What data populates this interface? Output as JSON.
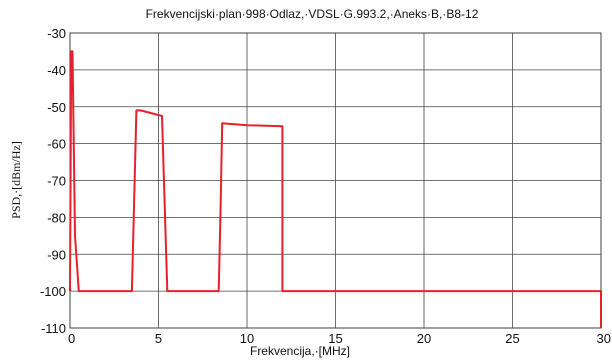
{
  "chart_data": {
    "type": "line",
    "title": "Frekvencijski·plan·998·Odlaz,·VDSL·G.993.2,·Aneks·B,·B8-12",
    "xlabel": "Frekvencija,·[MHz]",
    "ylabel": "PSD,·[dBm/Hz]",
    "xlim": [
      0,
      30
    ],
    "ylim": [
      -110,
      -30
    ],
    "x_ticks": [
      0,
      5,
      10,
      15,
      20,
      25,
      30
    ],
    "x_tick_labels": [
      "0",
      "5",
      "10",
      "15",
      "20",
      "25",
      "30"
    ],
    "y_ticks": [
      -30,
      -40,
      -50,
      -60,
      -70,
      -80,
      -90,
      -100,
      -110
    ],
    "y_tick_labels": [
      "-30",
      "-40",
      "-50",
      "-60",
      "-70",
      "-80",
      "-90",
      "-100",
      "-110"
    ],
    "grid": true,
    "series": [
      {
        "color": "#e8202a",
        "x": [
          0,
          0.07,
          0.14,
          0.28,
          0.5,
          0.55,
          3.5,
          3.75,
          4.0,
          5.2,
          5.5,
          8.4,
          8.5,
          8.6,
          10.0,
          12.0,
          12.0,
          30.0,
          30.0
        ],
        "y": [
          -100,
          -35,
          -35,
          -85,
          -100,
          -100,
          -100,
          -51,
          -51,
          -52.5,
          -100,
          -100,
          -80,
          -54.5,
          -55,
          -55.3,
          -100,
          -100,
          -110
        ]
      }
    ]
  }
}
